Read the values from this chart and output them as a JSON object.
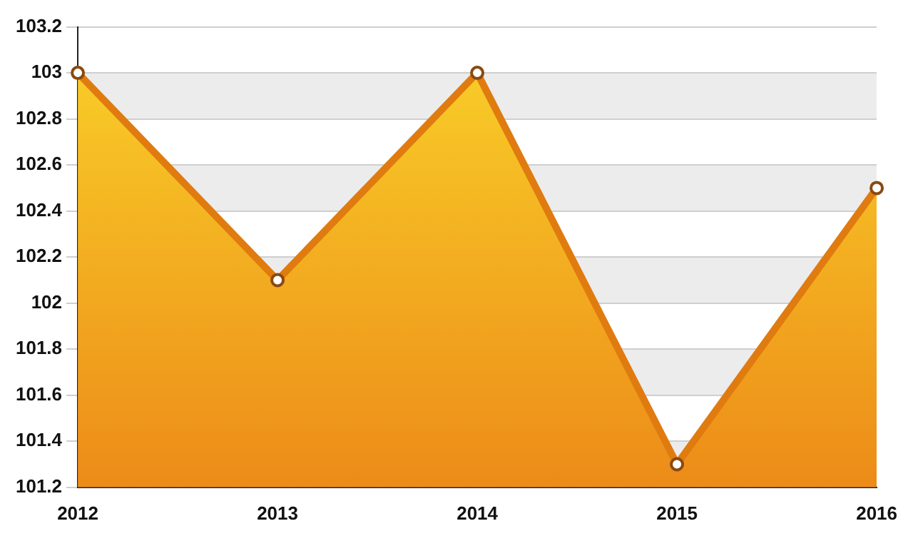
{
  "chart_data": {
    "type": "area",
    "categories": [
      "2012",
      "2013",
      "2014",
      "2015",
      "2016"
    ],
    "series": [
      {
        "color": "#e07b10",
        "values": [
          103,
          102.1,
          103,
          101.3,
          102.5
        ]
      }
    ],
    "ylim": [
      101.2,
      103.2
    ],
    "yticks": [
      101.2,
      101.4,
      101.6,
      101.8,
      102,
      102.2,
      102.4,
      102.6,
      102.8,
      103,
      103.2
    ],
    "grid": "y",
    "marker": "circle",
    "legend": false
  }
}
